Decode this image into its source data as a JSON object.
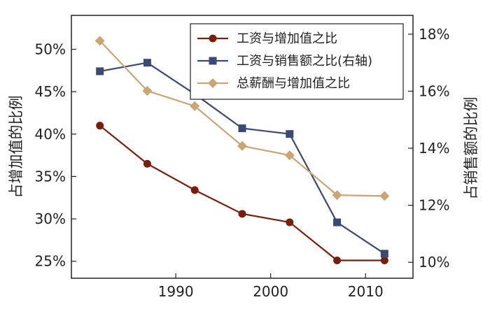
{
  "chart_data": {
    "type": "line",
    "x": [
      1982,
      1987,
      1992,
      1997,
      2002,
      2007,
      2012
    ],
    "x_ticks": [
      1990,
      2000,
      2010
    ],
    "xlim": [
      1979,
      2015
    ],
    "left_axis": {
      "label": "占增加值的比例",
      "ylim": [
        0.23,
        0.54
      ],
      "ticks": [
        0.25,
        0.3,
        0.35,
        0.4,
        0.45,
        0.5
      ],
      "tick_labels": [
        "25%",
        "30%",
        "35%",
        "40%",
        "45%",
        "50%"
      ]
    },
    "right_axis": {
      "label": "占销售额的比例",
      "ylim": [
        0.0944,
        0.1866
      ],
      "ticks": [
        0.1,
        0.12,
        0.14,
        0.16,
        0.18
      ],
      "tick_labels": [
        "10%",
        "12%",
        "14%",
        "16%",
        "18%"
      ]
    },
    "series": [
      {
        "name": "工资与增加值之比",
        "axis": "left",
        "color": "#7a1e0c",
        "marker": "circle",
        "values": [
          0.41,
          0.365,
          0.334,
          0.306,
          0.296,
          0.251,
          0.251
        ]
      },
      {
        "name": "工资与销售额之比(右轴)",
        "axis": "right",
        "color": "#3b4a72",
        "marker": "square",
        "values": [
          0.167,
          0.17,
          0.159,
          0.147,
          0.145,
          0.114,
          0.103
        ]
      },
      {
        "name": "总薪酬与增加值之比",
        "axis": "left",
        "color": "#c9a674",
        "marker": "diamond",
        "values": [
          0.51,
          0.451,
          0.433,
          0.386,
          0.375,
          0.328,
          0.327
        ]
      }
    ],
    "legend_position": "top-right",
    "grid": false
  }
}
